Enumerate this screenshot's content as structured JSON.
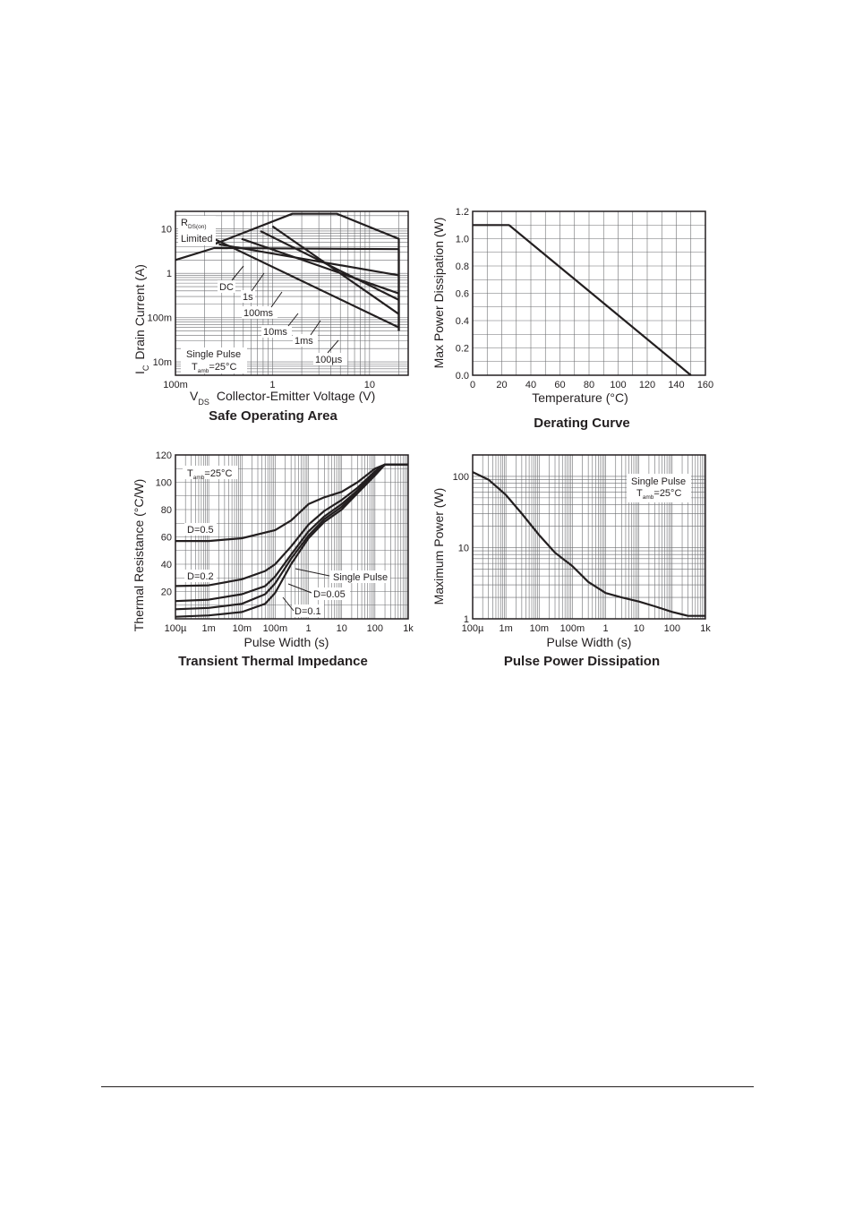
{
  "chart_data": [
    {
      "id": "soa",
      "type": "line",
      "title": "Safe Operating Area",
      "xlabel_prefix": "V",
      "xlabel_sub": "DS",
      "xlabel": "Collector-Emitter Voltage (V)",
      "ylabel_prefix": "I",
      "ylabel_sub": "C",
      "ylabel": "Drain Current (A)",
      "xscale": "log",
      "yscale": "log",
      "xlim": [
        0.1,
        25
      ],
      "ylim": [
        0.005,
        25
      ],
      "x_ticks": [
        {
          "v": 0.1,
          "label": "100m"
        },
        {
          "v": 1,
          "label": "1"
        },
        {
          "v": 10,
          "label": "10"
        }
      ],
      "y_ticks": [
        {
          "v": 0.01,
          "label": "10m"
        },
        {
          "v": 0.1,
          "label": "100m"
        },
        {
          "v": 1,
          "label": "1"
        },
        {
          "v": 10,
          "label": "10"
        }
      ],
      "grid": true,
      "series": [
        {
          "name": "DC",
          "points": [
            [
              0.1,
              2.0
            ],
            [
              0.25,
              3.7
            ],
            [
              20,
              3.5
            ],
            [
              20,
              0.05
            ]
          ]
        },
        {
          "name": "1s",
          "points": [
            [
              0.28,
              4.5
            ],
            [
              20,
              0.9
            ]
          ]
        },
        {
          "name": "100ms",
          "points": [
            [
              0.48,
              6.0
            ],
            [
              20,
              0.35
            ]
          ]
        },
        {
          "name": "10ms",
          "points": [
            [
              0.75,
              9.0
            ],
            [
              20,
              0.25
            ]
          ]
        },
        {
          "name": "1ms",
          "points": [
            [
              1.0,
              11.5
            ],
            [
              20,
              0.12
            ]
          ]
        },
        {
          "name": "100µs",
          "points": [
            [
              0.25,
              4.5
            ],
            [
              1.6,
              22
            ],
            [
              4.6,
              22
            ],
            [
              20,
              6.0
            ],
            [
              20,
              0.05
            ]
          ]
        },
        {
          "name": "",
          "points": [
            [
              0.25,
              6.0
            ],
            [
              20,
              0.06
            ]
          ]
        }
      ],
      "annotations": {
        "rds_main": "R",
        "rds_sub": "DS(on)",
        "rds_line2": "Limited",
        "dc": "DC",
        "s1": "1s",
        "ms100": "100ms",
        "ms10": "10ms",
        "ms1": "1ms",
        "us100": "100µs",
        "single_pulse": "Single Pulse",
        "tamb_main": "T",
        "tamb_sub": "amb",
        "tamb_value": "=25°C"
      }
    },
    {
      "id": "derating",
      "type": "line",
      "title": "Derating Curve",
      "xlabel": "Temperature (°C)",
      "ylabel": "Max Power Dissipation (W)",
      "xlim": [
        0,
        160
      ],
      "ylim": [
        0.0,
        1.2
      ],
      "x_ticks": [
        {
          "v": 0,
          "label": "0"
        },
        {
          "v": 20,
          "label": "20"
        },
        {
          "v": 40,
          "label": "40"
        },
        {
          "v": 60,
          "label": "60"
        },
        {
          "v": 80,
          "label": "80"
        },
        {
          "v": 100,
          "label": "100"
        },
        {
          "v": 120,
          "label": "120"
        },
        {
          "v": 140,
          "label": "140"
        },
        {
          "v": 160,
          "label": "160"
        }
      ],
      "y_ticks": [
        {
          "v": 0.0,
          "label": "0.0"
        },
        {
          "v": 0.2,
          "label": "0.2"
        },
        {
          "v": 0.4,
          "label": "0.4"
        },
        {
          "v": 0.6,
          "label": "0.6"
        },
        {
          "v": 0.8,
          "label": "0.8"
        },
        {
          "v": 1.0,
          "label": "1.0"
        },
        {
          "v": 1.2,
          "label": "1.2"
        }
      ],
      "grid": true,
      "series": [
        {
          "name": "",
          "points": [
            [
              0,
              1.1
            ],
            [
              25,
              1.1
            ],
            [
              150,
              0.0
            ]
          ]
        }
      ]
    },
    {
      "id": "transient",
      "type": "line",
      "title": "Transient Thermal Impedance",
      "xlabel": "Pulse Width (s)",
      "ylabel": "Thermal Resistance (°C/W)",
      "xscale": "log",
      "xlim": [
        0.0001,
        1000
      ],
      "ylim": [
        0,
        120
      ],
      "x_ticks": [
        {
          "v": 0.0001,
          "label": "100µ"
        },
        {
          "v": 0.001,
          "label": "1m"
        },
        {
          "v": 0.01,
          "label": "10m"
        },
        {
          "v": 0.1,
          "label": "100m"
        },
        {
          "v": 1,
          "label": "1"
        },
        {
          "v": 10,
          "label": "10"
        },
        {
          "v": 100,
          "label": "100"
        },
        {
          "v": 1000,
          "label": "1k"
        }
      ],
      "y_ticks": [
        {
          "v": 20,
          "label": "20"
        },
        {
          "v": 40,
          "label": "40"
        },
        {
          "v": 60,
          "label": "60"
        },
        {
          "v": 80,
          "label": "80"
        },
        {
          "v": 100,
          "label": "100"
        },
        {
          "v": 120,
          "label": "120"
        }
      ],
      "grid": true,
      "series": [
        {
          "name": "D=0.5",
          "points": [
            [
              0.0001,
              57
            ],
            [
              0.001,
              57
            ],
            [
              0.01,
              59
            ],
            [
              0.1,
              65
            ],
            [
              0.3,
              72
            ],
            [
              1,
              84
            ],
            [
              3,
              89
            ],
            [
              10,
              93
            ],
            [
              30,
              100
            ],
            [
              100,
              110
            ],
            [
              200,
              113
            ],
            [
              1000,
              113
            ]
          ]
        },
        {
          "name": "D=0.2",
          "points": [
            [
              0.0001,
              24
            ],
            [
              0.001,
              24.5
            ],
            [
              0.01,
              29
            ],
            [
              0.05,
              35
            ],
            [
              0.1,
              40
            ],
            [
              0.3,
              53
            ],
            [
              1,
              69
            ],
            [
              3,
              79
            ],
            [
              10,
              87
            ],
            [
              30,
              96
            ],
            [
              100,
              108
            ],
            [
              200,
              113
            ],
            [
              1000,
              113
            ]
          ]
        },
        {
          "name": "D=0.1",
          "points": [
            [
              0.0001,
              13
            ],
            [
              0.001,
              14
            ],
            [
              0.01,
              18
            ],
            [
              0.05,
              24
            ],
            [
              0.1,
              31
            ],
            [
              0.3,
              47
            ],
            [
              1,
              64
            ],
            [
              3,
              75
            ],
            [
              10,
              84
            ],
            [
              30,
              94
            ],
            [
              100,
              107
            ],
            [
              200,
              113
            ],
            [
              1000,
              113
            ]
          ]
        },
        {
          "name": "D=0.05",
          "points": [
            [
              0.0001,
              7
            ],
            [
              0.001,
              8
            ],
            [
              0.01,
              11
            ],
            [
              0.05,
              18
            ],
            [
              0.1,
              26
            ],
            [
              0.3,
              44
            ],
            [
              1,
              61
            ],
            [
              3,
              73
            ],
            [
              10,
              82
            ],
            [
              30,
              93
            ],
            [
              100,
              106
            ],
            [
              200,
              113
            ],
            [
              1000,
              113
            ]
          ]
        },
        {
          "name": "Single Pulse",
          "points": [
            [
              0.0001,
              1.5
            ],
            [
              0.001,
              2.5
            ],
            [
              0.01,
              5
            ],
            [
              0.05,
              11
            ],
            [
              0.1,
              19
            ],
            [
              0.3,
              40
            ],
            [
              1,
              59
            ],
            [
              3,
              71
            ],
            [
              10,
              80
            ],
            [
              30,
              92
            ],
            [
              100,
              105
            ],
            [
              200,
              113
            ],
            [
              1000,
              113
            ]
          ]
        }
      ],
      "annotations": {
        "tamb_main": "T",
        "tamb_sub": "amb",
        "tamb_value": "=25°C",
        "d05": "D=0.5",
        "d02": "D=0.2",
        "single": "Single Pulse",
        "d005": "D=0.05",
        "d01": "D=0.1"
      }
    },
    {
      "id": "pulse",
      "type": "line",
      "title": "Pulse Power Dissipation",
      "xlabel": "Pulse Width (s)",
      "ylabel": "Maximum Power (W)",
      "xscale": "log",
      "yscale": "log",
      "xlim": [
        0.0001,
        1000
      ],
      "ylim": [
        1,
        200
      ],
      "x_ticks": [
        {
          "v": 0.0001,
          "label": "100µ"
        },
        {
          "v": 0.001,
          "label": "1m"
        },
        {
          "v": 0.01,
          "label": "10m"
        },
        {
          "v": 0.1,
          "label": "100m"
        },
        {
          "v": 1,
          "label": "1"
        },
        {
          "v": 10,
          "label": "10"
        },
        {
          "v": 100,
          "label": "100"
        },
        {
          "v": 1000,
          "label": "1k"
        }
      ],
      "y_ticks": [
        {
          "v": 1,
          "label": "1"
        },
        {
          "v": 10,
          "label": "10"
        },
        {
          "v": 100,
          "label": "100"
        }
      ],
      "grid": true,
      "series": [
        {
          "name": "",
          "points": [
            [
              0.0001,
              115
            ],
            [
              0.0003,
              90
            ],
            [
              0.001,
              55
            ],
            [
              0.003,
              30
            ],
            [
              0.01,
              15
            ],
            [
              0.03,
              8.5
            ],
            [
              0.1,
              5.5
            ],
            [
              0.3,
              3.3
            ],
            [
              1,
              2.3
            ],
            [
              3,
              2.0
            ],
            [
              10,
              1.75
            ],
            [
              30,
              1.5
            ],
            [
              100,
              1.25
            ],
            [
              300,
              1.1
            ],
            [
              1000,
              1.1
            ]
          ]
        }
      ],
      "annotations": {
        "single_pulse": "Single Pulse",
        "tamb_main": "T",
        "tamb_sub": "amb",
        "tamb_value": "=25°C"
      }
    }
  ]
}
